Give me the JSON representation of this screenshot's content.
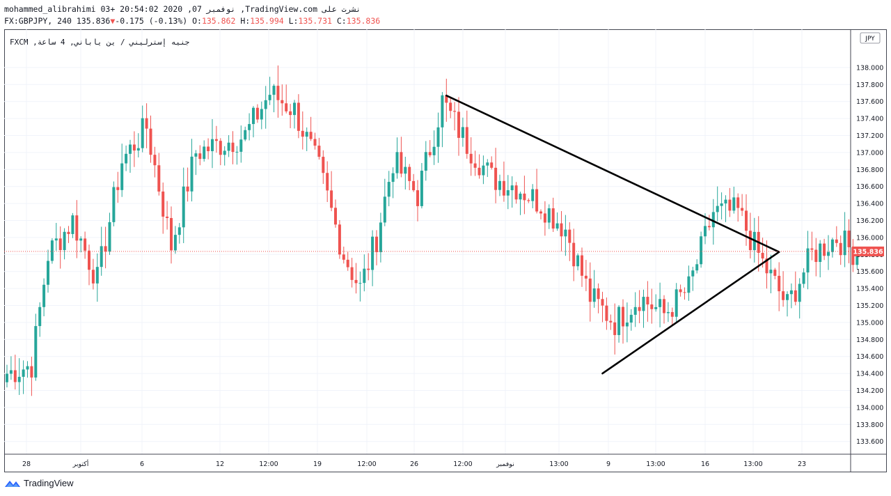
{
  "header": {
    "line1": "mohammed_alibrahimi 03+ 20:54:02 2020 ,07 نوفمبر ,TradingView.com نشرت على",
    "symbol": "FX:GBPJPY, 240",
    "last": "135.836",
    "arrow": "▼",
    "change": "-0.175 (-0.13%)",
    "o_label": "O:",
    "o_val": "135.862",
    "h_label": "H:",
    "h_val": "135.994",
    "l_label": "L:",
    "l_val": "135.731",
    "c_label": "C:",
    "c_val": "135.836"
  },
  "chart_label": "FXCM ,جنيه إسترليني / ين ياباني, 4 ساعة",
  "currency": "JPY",
  "brand": "TradingView",
  "colors": {
    "up": "#26a69a",
    "down": "#ef5350",
    "price_line": "#ef5350",
    "trendline": "#000000"
  },
  "chart_data": {
    "type": "candlestick",
    "symbol": "FX:GBPJPY",
    "ylim": [
      133.45,
      138.45
    ],
    "y_ticks": [
      "133.600",
      "133.800",
      "134.000",
      "134.200",
      "134.400",
      "134.600",
      "134.800",
      "135.000",
      "135.200",
      "135.400",
      "135.600",
      "135.800",
      "136.000",
      "136.200",
      "136.400",
      "136.600",
      "136.800",
      "137.000",
      "137.200",
      "137.400",
      "137.600",
      "137.800",
      "138.000"
    ],
    "x_ticks": [
      "28",
      "أكتوبر",
      "6",
      "12",
      "12:00",
      "19",
      "12:00",
      "26",
      "12:00",
      "نوفمبر",
      "13:00",
      "9",
      "13:00",
      "16",
      "13:00",
      "23"
    ],
    "last_price": 135.836,
    "last_price_label": "135.836",
    "grid": true,
    "anchors": [
      [
        0,
        134.4
      ],
      [
        6,
        134.5
      ],
      [
        10,
        135.8
      ],
      [
        16,
        136.2
      ],
      [
        22,
        135.5
      ],
      [
        28,
        136.9
      ],
      [
        34,
        137.3
      ],
      [
        40,
        135.9
      ],
      [
        46,
        137.0
      ],
      [
        52,
        137.1
      ],
      [
        58,
        137.2
      ],
      [
        64,
        137.7
      ],
      [
        70,
        137.5
      ],
      [
        76,
        136.8
      ],
      [
        82,
        135.8
      ],
      [
        86,
        135.4
      ],
      [
        90,
        136.0
      ],
      [
        94,
        136.9
      ],
      [
        100,
        136.5
      ],
      [
        106,
        137.6
      ],
      [
        112,
        137.1
      ],
      [
        118,
        136.7
      ],
      [
        124,
        136.6
      ],
      [
        130,
        136.4
      ],
      [
        136,
        136.1
      ],
      [
        142,
        135.3
      ],
      [
        148,
        135.0
      ],
      [
        154,
        135.3
      ],
      [
        160,
        135.1
      ],
      [
        166,
        135.4
      ],
      [
        172,
        136.3
      ],
      [
        178,
        136.3
      ],
      [
        184,
        135.7
      ],
      [
        190,
        135.2
      ],
      [
        196,
        135.8
      ],
      [
        202,
        136.0
      ],
      [
        207,
        135.8
      ]
    ],
    "trendlines": [
      {
        "from": {
          "bar": 107,
          "price": 137.67
        },
        "to": {
          "bar": 188,
          "price": 135.83
        }
      },
      {
        "from": {
          "bar": 145,
          "price": 134.4
        },
        "to": {
          "bar": 188,
          "price": 135.83
        }
      }
    ]
  }
}
